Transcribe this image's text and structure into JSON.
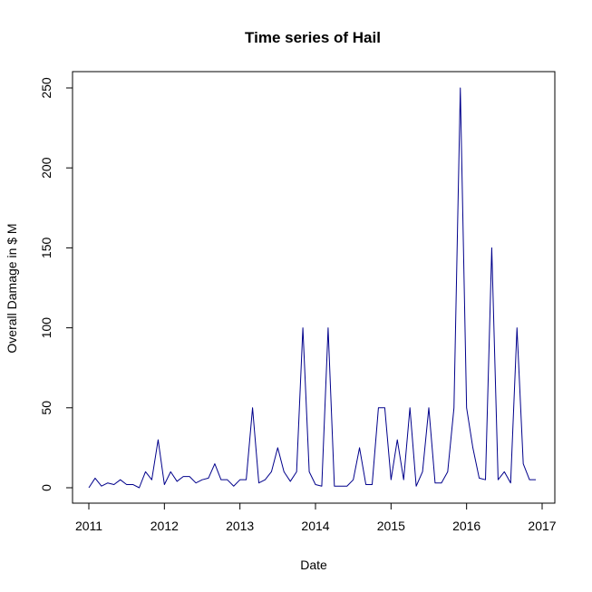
{
  "chart_data": {
    "type": "line",
    "title": "Time series of Hail",
    "xlabel": "Date",
    "ylabel": "Overall Damage in $ M",
    "xlim": [
      2011,
      2017
    ],
    "ylim": [
      0,
      250
    ],
    "x_ticks": [
      "2011",
      "2012",
      "2013",
      "2014",
      "2015",
      "2016",
      "2017"
    ],
    "y_ticks": [
      "0",
      "50",
      "100",
      "150",
      "200",
      "250"
    ],
    "grid": false,
    "colors": {
      "line": "#00008B",
      "axis": "#000000"
    },
    "series": [
      {
        "x": [
          2011.0,
          2011.083,
          2011.167,
          2011.25,
          2011.333,
          2011.417,
          2011.5,
          2011.583,
          2011.667,
          2011.75,
          2011.833,
          2011.917,
          2012.0,
          2012.083,
          2012.167,
          2012.25,
          2012.333,
          2012.417,
          2012.5,
          2012.583,
          2012.667,
          2012.75,
          2012.833,
          2012.917,
          2013.0,
          2013.083,
          2013.167,
          2013.25,
          2013.333,
          2013.417,
          2013.5,
          2013.583,
          2013.667,
          2013.75,
          2013.833,
          2013.917,
          2014.0,
          2014.083,
          2014.167,
          2014.25,
          2014.333,
          2014.417,
          2014.5,
          2014.583,
          2014.667,
          2014.75,
          2014.833,
          2014.917,
          2015.0,
          2015.083,
          2015.167,
          2015.25,
          2015.333,
          2015.417,
          2015.5,
          2015.583,
          2015.667,
          2015.75,
          2015.833,
          2015.917,
          2016.0,
          2016.083,
          2016.167,
          2016.25,
          2016.333,
          2016.417,
          2016.5,
          2016.583,
          2016.667,
          2016.75,
          2016.833,
          2016.917
        ],
        "y": [
          0,
          6,
          1,
          3,
          2,
          5,
          2,
          2,
          0,
          10,
          5,
          30,
          2,
          10,
          4,
          7,
          7,
          3,
          5,
          6,
          15,
          5,
          5,
          1,
          5,
          5,
          50,
          3,
          5,
          10,
          25,
          10,
          4,
          10,
          100,
          10,
          2,
          1,
          100,
          1,
          1,
          1,
          5,
          25,
          2,
          2,
          50,
          50,
          5,
          30,
          5,
          50,
          1,
          10,
          50,
          3,
          3,
          10,
          50,
          250,
          50,
          25,
          6,
          5,
          150,
          5,
          10,
          3,
          100,
          15,
          5,
          5
        ]
      }
    ]
  }
}
